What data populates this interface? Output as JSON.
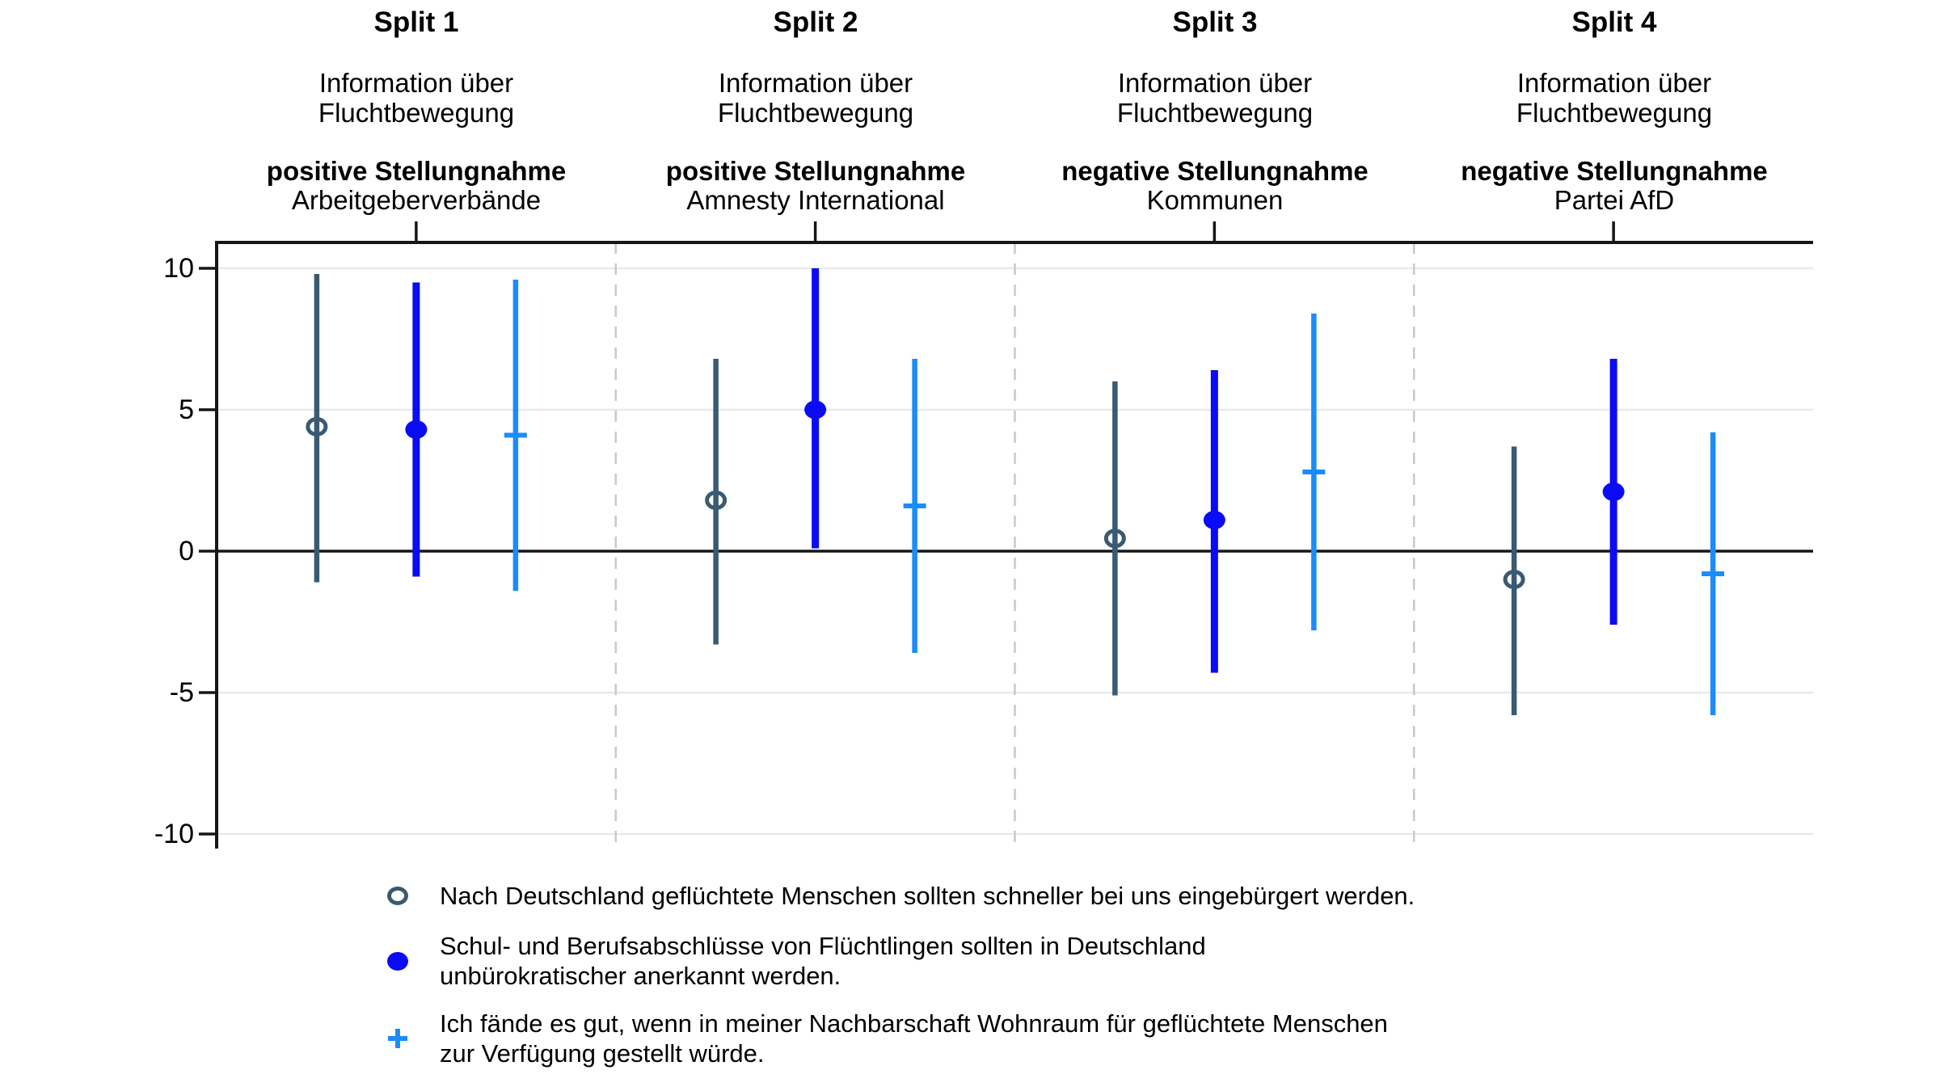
{
  "chart_data": {
    "type": "scatter",
    "subtype": "coefficient-plot-with-confidence-intervals",
    "title": "",
    "xlabel": "",
    "ylabel": "",
    "ylim": [
      -10.5,
      10.9
    ],
    "yticks": [
      10,
      5,
      0,
      -5,
      -10
    ],
    "ytick_labels": [
      "10",
      "5",
      "0",
      "-5",
      "-10"
    ],
    "grid": true,
    "zero_line": true,
    "legend_position": "bottom",
    "colors": {
      "axis": "#161616",
      "zero_line": "#161616",
      "gridline": "#e9e9e9",
      "separator": "#c9c9c9"
    },
    "series": [
      {
        "name": "einbuergerung",
        "marker": "open-circle",
        "color": "#3a5a72",
        "label": "Nach Deutschland geflüchtete Menschen sollten schneller bei uns eingebürgert werden."
      },
      {
        "name": "abschluesse",
        "marker": "filled-circle",
        "color": "#0b0bf5",
        "label": "Schul- und Berufsabschlüsse von Flüchtlingen sollten in Deutschland\nunbürokratischer anerkannt werden."
      },
      {
        "name": "wohnraum",
        "marker": "plus",
        "color": "#1b8cfa",
        "label": "Ich fände es gut, wenn in meiner Nachbarschaft Wohnraum für geflüchtete Menschen\nzur Verfügung gestellt würde."
      }
    ],
    "splits": [
      {
        "label": "Split 1",
        "info": "Information über\nFluchtbewegung",
        "stance": "positive Stellungnahme",
        "source": "Arbeitgeberverbände",
        "estimates": [
          {
            "value": 4.4,
            "ci_low": -1.1,
            "ci_high": 9.8
          },
          {
            "value": 4.3,
            "ci_low": -0.9,
            "ci_high": 9.5
          },
          {
            "value": 4.1,
            "ci_low": -1.4,
            "ci_high": 9.6
          }
        ]
      },
      {
        "label": "Split 2",
        "info": "Information über\nFluchtbewegung",
        "stance": "positive Stellungnahme",
        "source": "Amnesty International",
        "estimates": [
          {
            "value": 1.8,
            "ci_low": -3.3,
            "ci_high": 6.8
          },
          {
            "value": 5.0,
            "ci_low": 0.1,
            "ci_high": 10.0
          },
          {
            "value": 1.6,
            "ci_low": -3.6,
            "ci_high": 6.8
          }
        ]
      },
      {
        "label": "Split 3",
        "info": "Information über\nFluchtbewegung",
        "stance": "negative Stellungnahme",
        "source": "Kommunen",
        "estimates": [
          {
            "value": 0.45,
            "ci_low": -5.1,
            "ci_high": 6.0
          },
          {
            "value": 1.1,
            "ci_low": -4.3,
            "ci_high": 6.4
          },
          {
            "value": 2.8,
            "ci_low": -2.8,
            "ci_high": 8.4
          }
        ]
      },
      {
        "label": "Split 4",
        "info": "Information über\nFluchtbewegung",
        "stance": "negative Stellungnahme",
        "source": "Partei AfD",
        "estimates": [
          {
            "value": -1.0,
            "ci_low": -5.8,
            "ci_high": 3.7
          },
          {
            "value": 2.1,
            "ci_low": -2.6,
            "ci_high": 6.8
          },
          {
            "value": -0.8,
            "ci_low": -5.8,
            "ci_high": 4.2
          }
        ]
      }
    ]
  }
}
